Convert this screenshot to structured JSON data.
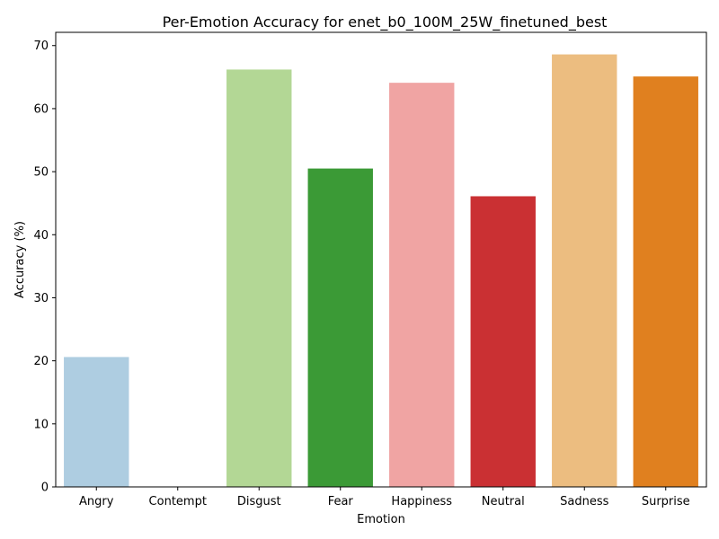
{
  "chart_data": {
    "type": "bar",
    "title": "Per-Emotion Accuracy for enet_b0_100M_25W_finetuned_best",
    "xlabel": "Emotion",
    "ylabel": "Accuracy (%)",
    "categories": [
      "Angry",
      "Contempt",
      "Disgust",
      "Fear",
      "Happiness",
      "Neutral",
      "Sadness",
      "Surprise"
    ],
    "values": [
      20.6,
      0.0,
      66.2,
      50.5,
      64.1,
      46.1,
      68.6,
      65.1
    ],
    "colors": [
      "#aecde1",
      "#1f78b4",
      "#b3d795",
      "#3b9a36",
      "#f0a4a3",
      "#ca3033",
      "#ecbd80",
      "#e0801f"
    ],
    "ylim": [
      0,
      72.1
    ],
    "yticks": [
      0,
      10,
      20,
      30,
      40,
      50,
      60,
      70
    ],
    "grid": false,
    "legend": "none"
  }
}
